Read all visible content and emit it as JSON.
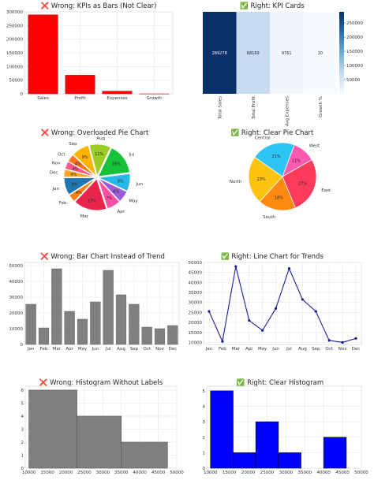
{
  "chart_data": [
    {
      "id": "kpi-bars",
      "type": "bar",
      "title": "❌ Wrong: KPIs as Bars (Not Clear)",
      "categories": [
        "Sales",
        "Profit",
        "Expenses",
        "Growth"
      ],
      "values": [
        289278,
        68169,
        9761,
        10
      ],
      "ylim": [
        0,
        300000
      ],
      "yticks": [
        "0",
        "50000",
        "100000",
        "150000",
        "200000",
        "250000",
        "300000"
      ],
      "color": "#ff0000",
      "grid": true
    },
    {
      "id": "kpi-cards",
      "type": "heatmap",
      "title": "✅ Right: KPI Cards",
      "categories": [
        "Total Sales",
        "Total Profit",
        "Avg Expenses",
        "Growth %"
      ],
      "values": [
        289278,
        68169,
        9761,
        10
      ],
      "value_labels": [
        "289278",
        "68169",
        "9761",
        "10"
      ],
      "colorbar_ticks": [
        "50000",
        "100000",
        "150000",
        "200000",
        "250000"
      ],
      "colors": {
        "low": "#f7fbff",
        "high": "#08306b"
      }
    },
    {
      "id": "pie-wrong",
      "type": "pie",
      "title": "❌ Wrong: Overloaded Pie Chart",
      "labels": [
        "Jan",
        "Feb",
        "Mar",
        "Apr",
        "May",
        "Jun",
        "Jul",
        "Aug",
        "Sep",
        "Oct",
        "Nov",
        "Dec"
      ],
      "percents": [
        "9%",
        "4%",
        "17%",
        "7%",
        "6%",
        "9%",
        "16%",
        "11%",
        "9%",
        "4%",
        "4%",
        "4%"
      ],
      "values": [
        9,
        4,
        17,
        7,
        6,
        9,
        16,
        11,
        9,
        4,
        4,
        4
      ],
      "colors": [
        "#1f77b4",
        "#ff7f0e",
        "#e8254a",
        "#ff4fa3",
        "#a05ad8",
        "#29b6e8",
        "#17c23a",
        "#9ccc28",
        "#ffb300",
        "#ff7518",
        "#ff5a8a",
        "#ffa726"
      ]
    },
    {
      "id": "pie-right",
      "type": "pie",
      "title": "✅ Right: Clear Pie Chart",
      "labels": [
        "North",
        "South",
        "East",
        "West",
        "Central"
      ],
      "percents": [
        "23%",
        "18%",
        "27%",
        "11%",
        "21%"
      ],
      "values": [
        23,
        18,
        27,
        11,
        21
      ],
      "colors": [
        "#ffc312",
        "#ff8a12",
        "#ff3a5a",
        "#ff5ab2",
        "#2ec4f4"
      ]
    },
    {
      "id": "trend-bars",
      "type": "bar",
      "title": "❌ Wrong: Bar Chart Instead of Trend",
      "categories": [
        "Jan",
        "Feb",
        "Mar",
        "Apr",
        "May",
        "Jun",
        "Jul",
        "Aug",
        "Sep",
        "Oct",
        "Nov",
        "Dec"
      ],
      "values": [
        25500,
        10500,
        48000,
        21000,
        16000,
        27000,
        47000,
        31500,
        25500,
        11000,
        10000,
        12000
      ],
      "ylim": [
        0,
        52000
      ],
      "yticks": [
        "0",
        "10000",
        "20000",
        "30000",
        "40000",
        "50000"
      ],
      "color": "#808080",
      "grid": true
    },
    {
      "id": "trend-line",
      "type": "line",
      "title": "✅ Right: Line Chart for Trends",
      "categories": [
        "Jan",
        "Feb",
        "Mar",
        "Apr",
        "May",
        "Jun",
        "Jul",
        "Aug",
        "Sep",
        "Oct",
        "Nov",
        "Dec"
      ],
      "values": [
        25500,
        10500,
        48000,
        21000,
        16000,
        27000,
        47000,
        31500,
        25500,
        11000,
        10000,
        12000
      ],
      "ylim": [
        9000,
        50000
      ],
      "yticks": [
        "10000",
        "15000",
        "20000",
        "25000",
        "30000",
        "35000",
        "40000",
        "45000",
        "50000"
      ],
      "color": "#1a1a9a",
      "grid": true
    },
    {
      "id": "hist-wrong",
      "type": "bar",
      "title": "❌ Wrong: Histogram Without Labels",
      "bins": [
        [
          10000,
          23000
        ],
        [
          23000,
          35000
        ],
        [
          35000,
          47500
        ]
      ],
      "counts": [
        6,
        4,
        2
      ],
      "xlim": [
        9000,
        50000
      ],
      "ylim": [
        0,
        6.3
      ],
      "xticks": [
        "10000",
        "15000",
        "20000",
        "25000",
        "30000",
        "35000",
        "40000",
        "45000",
        "50000"
      ],
      "yticks": [
        "0",
        "1",
        "2",
        "3",
        "4",
        "5",
        "6"
      ],
      "color": "#808080",
      "grid": true
    },
    {
      "id": "hist-right",
      "type": "bar",
      "title": "✅ Right: Clear Histogram",
      "bins": [
        [
          10000,
          16000
        ],
        [
          16000,
          22000
        ],
        [
          22000,
          28000
        ],
        [
          28000,
          34000
        ],
        [
          34000,
          40000
        ],
        [
          40000,
          46000
        ]
      ],
      "counts": [
        5,
        1,
        3,
        1,
        0,
        2
      ],
      "xlim": [
        9000,
        50000
      ],
      "ylim": [
        0,
        5.3
      ],
      "xticks": [
        "10000",
        "15000",
        "20000",
        "25000",
        "30000",
        "35000",
        "40000",
        "45000",
        "50000"
      ],
      "yticks": [
        "0",
        "1",
        "2",
        "3",
        "4",
        "5"
      ],
      "color": "#0000ff",
      "grid": true
    }
  ]
}
